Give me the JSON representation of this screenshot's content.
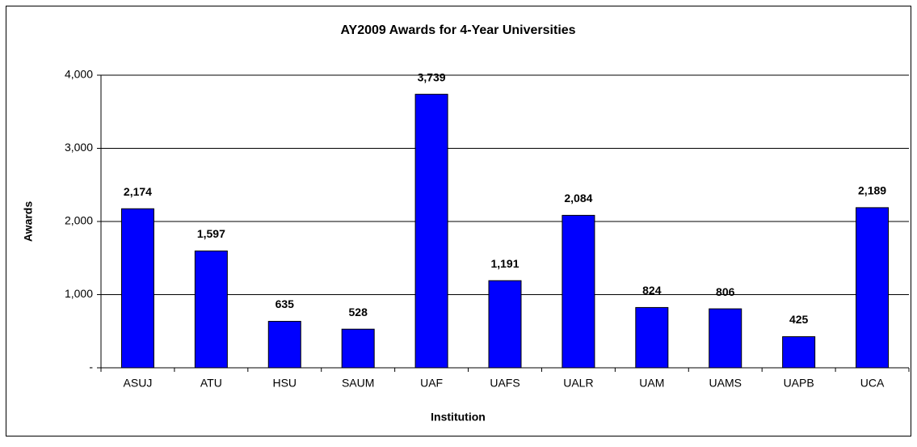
{
  "chart_data": {
    "type": "bar",
    "title": "AY2009 Awards for 4-Year Universities",
    "x_label": "Institution",
    "y_label": "Awards",
    "categories": [
      "ASUJ",
      "ATU",
      "HSU",
      "SAUM",
      "UAF",
      "UAFS",
      "UALR",
      "UAM",
      "UAMS",
      "UAPB",
      "UCA"
    ],
    "values": [
      2174,
      1597,
      635,
      528,
      3739,
      1191,
      2084,
      824,
      806,
      425,
      2189
    ],
    "value_labels": [
      "2,174",
      "1,597",
      "635",
      "528",
      "3,739",
      "1,191",
      "2,084",
      "824",
      "806",
      "425",
      "2,189"
    ],
    "color": "#0000ff",
    "ylim": [
      0,
      4000
    ],
    "yticks": [
      {
        "value": 0,
        "label": "-"
      },
      {
        "value": 1000,
        "label": "1,000"
      },
      {
        "value": 2000,
        "label": "2,000"
      },
      {
        "value": 3000,
        "label": "3,000"
      },
      {
        "value": 4000,
        "label": "4,000"
      }
    ],
    "grid": true
  }
}
